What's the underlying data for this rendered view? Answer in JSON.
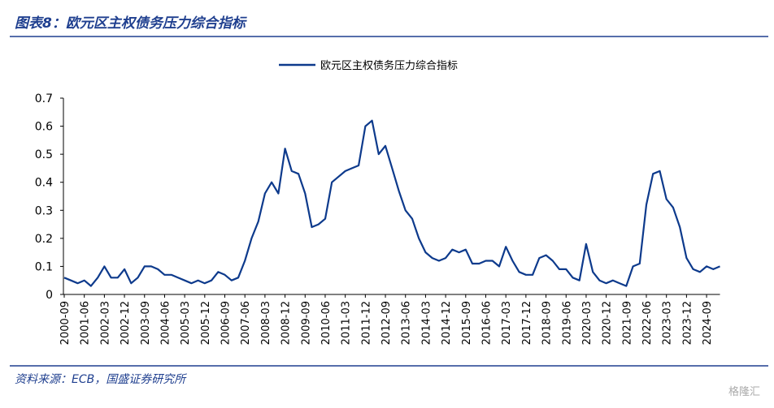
{
  "chart_data": {
    "type": "line",
    "title": "图表8：欧元区主权债务压力综合指标",
    "source": "资料来源：ECB，国盛证券研究所",
    "watermark": "格隆汇",
    "categories": [
      "2000-09",
      null,
      null,
      "2001-06",
      null,
      null,
      "2002-03",
      null,
      null,
      "2002-12",
      null,
      null,
      "2003-09",
      null,
      null,
      "2004-06",
      null,
      null,
      "2005-03",
      null,
      null,
      "2005-12",
      null,
      null,
      "2006-09",
      null,
      null,
      "2007-06",
      null,
      null,
      "2008-03",
      null,
      null,
      "2008-12",
      null,
      null,
      "2009-09",
      null,
      null,
      "2010-06",
      null,
      null,
      "2011-03",
      null,
      null,
      "2011-12",
      null,
      null,
      "2012-09",
      null,
      null,
      "2013-06",
      null,
      null,
      "2014-03",
      null,
      null,
      "2014-12",
      null,
      null,
      "2015-09",
      null,
      null,
      "2016-06",
      null,
      null,
      "2017-03",
      null,
      null,
      "2017-12",
      null,
      null,
      "2018-09",
      null,
      null,
      "2019-06",
      null,
      null,
      "2020-03",
      null,
      null,
      "2020-12",
      null,
      null,
      "2021-09",
      null,
      null,
      "2022-06",
      null,
      null,
      "2023-03",
      null,
      null,
      "2023-12",
      null,
      null,
      "2024-09",
      null,
      null
    ],
    "series": [
      {
        "name": "欧元区主权债务压力综合指标",
        "color": "#0d3a8c",
        "values": [
          0.06,
          0.05,
          0.04,
          0.05,
          0.03,
          0.06,
          0.1,
          0.06,
          0.06,
          0.09,
          0.04,
          0.06,
          0.1,
          0.1,
          0.09,
          0.07,
          0.07,
          0.06,
          0.05,
          0.04,
          0.05,
          0.04,
          0.05,
          0.08,
          0.07,
          0.05,
          0.06,
          0.12,
          0.2,
          0.26,
          0.36,
          0.4,
          0.36,
          0.52,
          0.44,
          0.43,
          0.36,
          0.24,
          0.25,
          0.27,
          0.4,
          0.42,
          0.44,
          0.45,
          0.46,
          0.6,
          0.62,
          0.5,
          0.53,
          0.45,
          0.37,
          0.3,
          0.27,
          0.2,
          0.15,
          0.13,
          0.12,
          0.13,
          0.16,
          0.15,
          0.16,
          0.11,
          0.11,
          0.12,
          0.12,
          0.1,
          0.17,
          0.12,
          0.08,
          0.07,
          0.07,
          0.13,
          0.14,
          0.12,
          0.09,
          0.09,
          0.06,
          0.05,
          0.18,
          0.08,
          0.05,
          0.04,
          0.05,
          0.04,
          0.03,
          0.1,
          0.11,
          0.32,
          0.43,
          0.44,
          0.34,
          0.31,
          0.24,
          0.13,
          0.09,
          0.08,
          0.1,
          0.09,
          0.1
        ]
      }
    ],
    "ylim": [
      0,
      0.7
    ],
    "yticks": [
      0,
      0.1,
      0.2,
      0.3,
      0.4,
      0.5,
      0.6,
      0.7
    ],
    "grid": false,
    "legend": "top"
  }
}
